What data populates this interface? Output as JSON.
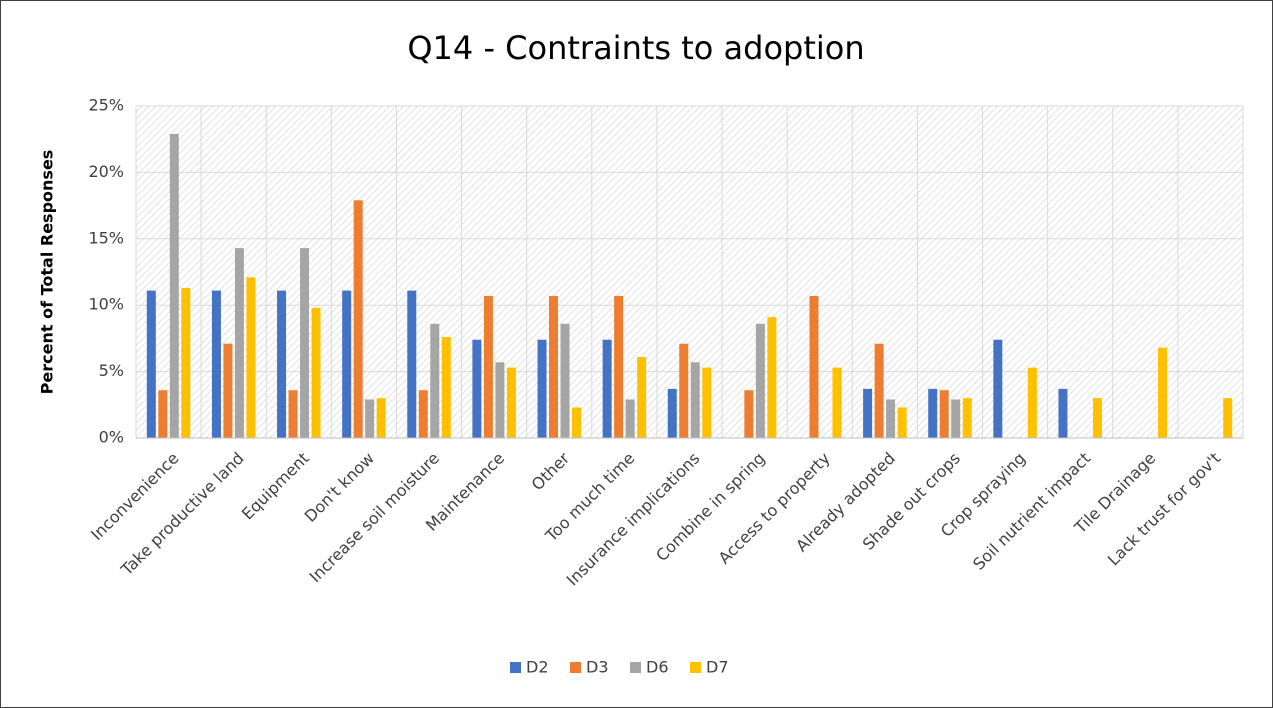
{
  "chart_data": {
    "type": "bar",
    "title": "Q14 - Contraints to adoption",
    "y_label": "Percent of Total Responses",
    "categories": [
      "Inconvenience",
      "Take productive land",
      "Equipment",
      "Don't know",
      "Increase soil moisture",
      "Maintenance",
      "Other",
      "Too much time",
      "Insurance implications",
      "Combine in spring",
      "Access to property",
      "Already adopted",
      "Shade out crops",
      "Crop spraying",
      "Soil nutrient impact",
      "Tile Drainage",
      "Lack trust for gov't"
    ],
    "series": [
      {
        "name": "D2",
        "color": "#4472c4",
        "values": [
          11.1,
          11.1,
          11.1,
          11.1,
          11.1,
          7.4,
          7.4,
          7.4,
          3.7,
          0,
          0,
          3.7,
          3.7,
          7.4,
          3.7,
          0,
          0
        ]
      },
      {
        "name": "D3",
        "color": "#ed7d31",
        "values": [
          3.6,
          7.1,
          3.6,
          17.9,
          3.6,
          10.7,
          10.7,
          10.7,
          7.1,
          3.6,
          10.7,
          7.1,
          3.6,
          0,
          0,
          0,
          0
        ]
      },
      {
        "name": "D6",
        "color": "#a5a5a5",
        "values": [
          22.9,
          14.3,
          14.3,
          2.9,
          8.6,
          5.7,
          8.6,
          2.9,
          5.7,
          8.6,
          0,
          2.9,
          2.9,
          0,
          0,
          0,
          0
        ]
      },
      {
        "name": "D7",
        "color": "#ffc000",
        "values": [
          11.3,
          12.1,
          9.8,
          3.0,
          7.6,
          5.3,
          2.3,
          6.1,
          5.3,
          9.1,
          5.3,
          2.3,
          3.0,
          5.3,
          3.0,
          6.8,
          3.0
        ]
      }
    ],
    "ylim": [
      0,
      25
    ],
    "yticks": [
      {
        "value": 0,
        "label": "0%"
      },
      {
        "value": 5,
        "label": "5%"
      },
      {
        "value": 10,
        "label": "10%"
      },
      {
        "value": 15,
        "label": "15%"
      },
      {
        "value": 20,
        "label": "20%"
      },
      {
        "value": 25,
        "label": "25%"
      }
    ],
    "grid": true,
    "legend": "bottom"
  }
}
